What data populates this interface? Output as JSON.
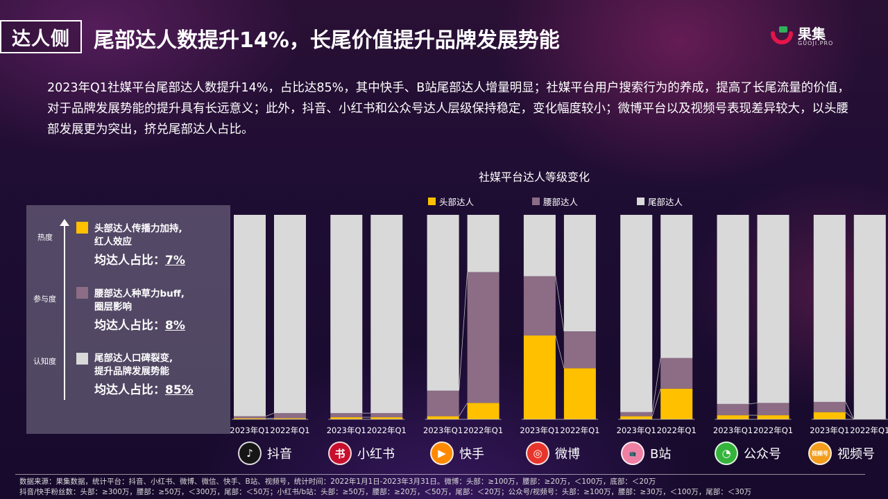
{
  "header": {
    "section_tag": "达人侧",
    "headline": "尾部达人数提升14%，长尾价值提升品牌发展势能"
  },
  "logo": {
    "name": "果集",
    "sub": "GUOJI.PRO",
    "accent": "#e4154b"
  },
  "intro": "2023年Q1社媒平台尾部达人数提升14%，占比达85%，其中快手、B站尾部达人增量明显；社媒平台用户搜索行为的养成，提高了长尾流量的价值，对于品牌发展势能的提升具有长远意义；此外，抖音、小红书和公众号达人层级保持稳定，变化幅度较小；微博平台以及视频号表现差异较大，以头腰部发展更为突出，挤兑尾部达人占比。",
  "side_panel": {
    "axis_labels": [
      "热度",
      "参与度",
      "认知度"
    ],
    "tiers": [
      {
        "line1": "头部达人传播力加持,",
        "line2": "红人效应",
        "share_label": "均达人占比：",
        "share_value": "7%",
        "color": "#ffc000"
      },
      {
        "line1": "腰部达人种草力buff,",
        "line2": "圈层影响",
        "share_label": "均达人占比：",
        "share_value": "8%",
        "color": "#8c6d85"
      },
      {
        "line1": "尾部达人口碑裂变,",
        "line2": "提升品牌发展势能",
        "share_label": "均达人占比：",
        "share_value": "85%",
        "color": "#d9d9d9"
      }
    ]
  },
  "chart_data": {
    "type": "bar",
    "stacked": true,
    "title": "社媒平台达人等级变化",
    "legend": [
      "头部达人",
      "腰部达人",
      "尾部达人"
    ],
    "legend_position": "top",
    "colors": {
      "head": "#ffc000",
      "waist": "#8c6d85",
      "tail": "#d9d9d9"
    },
    "ylim": [
      0,
      100
    ],
    "groups": [
      {
        "platform": "抖音",
        "bars": [
          {
            "label": "2023年Q1",
            "head": 0.5,
            "waist": 1.0,
            "tail": 98.5
          },
          {
            "label": "2022年Q1",
            "head": 0.5,
            "waist": 2.5,
            "tail": 97.0
          }
        ]
      },
      {
        "platform": "小红书",
        "bars": [
          {
            "label": "2023年Q1",
            "head": 1.0,
            "waist": 2.0,
            "tail": 97.0
          },
          {
            "label": "2022年Q1",
            "head": 1.0,
            "waist": 2.0,
            "tail": 97.0
          }
        ]
      },
      {
        "platform": "快手",
        "bars": [
          {
            "label": "2023年Q1",
            "head": 1.5,
            "waist": 12.5,
            "tail": 86.0
          },
          {
            "label": "2022年Q1",
            "head": 8.0,
            "waist": 64.0,
            "tail": 28.0
          }
        ]
      },
      {
        "platform": "微博",
        "bars": [
          {
            "label": "2023年Q1",
            "head": 41.0,
            "waist": 29.0,
            "tail": 30.0
          },
          {
            "label": "2022年Q1",
            "head": 25.0,
            "waist": 18.0,
            "tail": 57.0
          }
        ]
      },
      {
        "platform": "B站",
        "bars": [
          {
            "label": "2023年Q1",
            "head": 1.5,
            "waist": 2.0,
            "tail": 96.5
          },
          {
            "label": "2022年Q1",
            "head": 15.0,
            "waist": 15.0,
            "tail": 70.0
          }
        ]
      },
      {
        "platform": "公众号",
        "bars": [
          {
            "label": "2023年Q1",
            "head": 2.0,
            "waist": 5.5,
            "tail": 92.5
          },
          {
            "label": "2022年Q1",
            "head": 2.0,
            "waist": 6.0,
            "tail": 92.0
          }
        ]
      },
      {
        "platform": "视频号",
        "bars": [
          {
            "label": "2023年Q1",
            "head": 3.5,
            "waist": 5.0,
            "tail": 91.5
          },
          {
            "label": "2022年Q1",
            "head": 0.0,
            "waist": 0.0,
            "tail": 100.0
          }
        ]
      }
    ]
  },
  "platforms": [
    {
      "name": "抖音",
      "icon": "tiktok-icon",
      "glyph": "♪",
      "color": "#161616"
    },
    {
      "name": "小红书",
      "icon": "xiaohongshu-icon",
      "glyph": "书",
      "color": "#c8102e"
    },
    {
      "name": "快手",
      "icon": "kuaishou-icon",
      "glyph": "▶",
      "color": "#ff8a00"
    },
    {
      "name": "微博",
      "icon": "weibo-icon",
      "glyph": "◎",
      "color": "#e8352b"
    },
    {
      "name": "B站",
      "icon": "bilibili-icon",
      "glyph": "📺",
      "color": "#ef7fa3"
    },
    {
      "name": "公众号",
      "icon": "wechat-official-icon",
      "glyph": "◔",
      "color": "#35b43b"
    },
    {
      "name": "视频号",
      "icon": "wechat-channels-icon",
      "glyph": "视频号",
      "color": "#f29d1b"
    }
  ],
  "footer": {
    "line1": "数据来源：果集数据，统计平台：抖音、小红书、微博、微信、快手、B站、视频号，统计时间：2022年1月1日-2023年3月31日。微博：头部：≥100万，腰部：≥20万，＜100万，底部：＜20万",
    "line2": "抖音/快手粉丝数：头部：≥300万，腰部：≥50万，＜300万，尾部：＜50万；小红书/b站：头部：≥50万，腰部：≥20万，＜50万，尾部：＜20万；公众号/视频号：头部：≥100万，腰部：≥30万，＜100万，尾部：＜30万"
  }
}
